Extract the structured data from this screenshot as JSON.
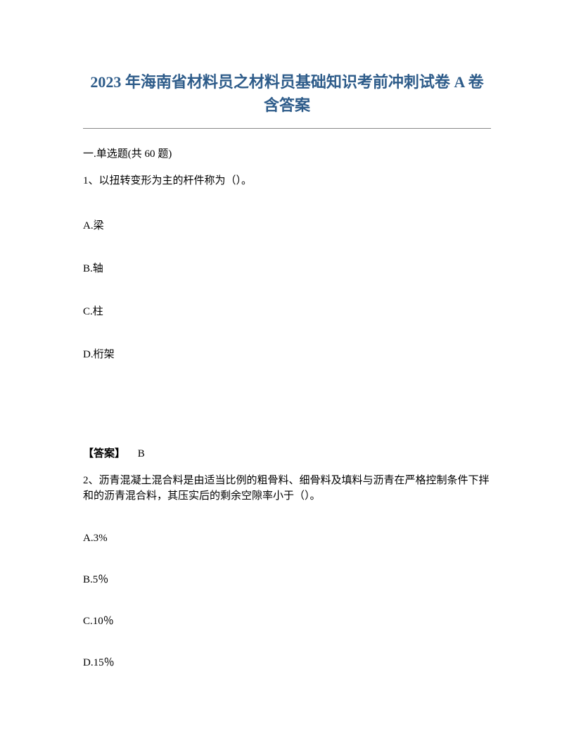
{
  "title_line1": "2023 年海南省材料员之材料员基础知识考前冲刺试卷 A 卷",
  "title_line2": "含答案",
  "section_header": "一.单选题(共 60 题)",
  "q1": {
    "text": "1、以扭转变形为主的杆件称为（）。",
    "options": {
      "a": "A.梁",
      "b": "B.轴",
      "c": "C.柱",
      "d": "D.桁架"
    },
    "answer_label": "【答案】",
    "answer_value": "B"
  },
  "q2": {
    "text": "2、沥青混凝土混合料是由适当比例的粗骨料、细骨料及填料与沥青在严格控制条件下拌和的沥青混合料，其压实后的剩余空隙率小于（）。",
    "options": {
      "a": "A.3%",
      "b": "B.5％",
      "c": "C.10％",
      "d": "D.15％"
    }
  },
  "colors": {
    "title_color": "#2e5c8a",
    "text_color": "#000000",
    "background": "#ffffff",
    "divider": "#888888"
  },
  "typography": {
    "title_fontsize": 22,
    "body_fontsize": 15,
    "font_family": "SimSun"
  }
}
